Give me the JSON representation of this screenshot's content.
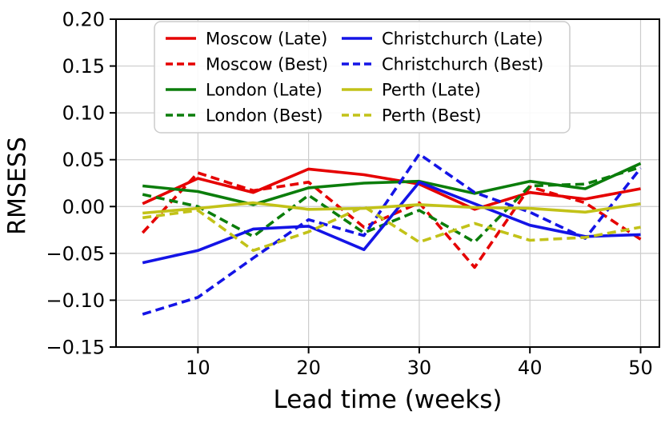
{
  "figure": {
    "background": "#ffffff",
    "grid_color": "#cccccc",
    "spine_color": "#000000",
    "tick_color": "#000000",
    "legend_border_color": "#cccccc",
    "legend_background": "#ffffff"
  },
  "chart_data": {
    "type": "line",
    "title": "",
    "xlabel": "Lead time (weeks)",
    "ylabel": "RMSESS",
    "x": [
      5,
      10,
      15,
      20,
      25,
      30,
      35,
      40,
      45,
      50
    ],
    "xticks": [
      10,
      20,
      30,
      40,
      50
    ],
    "yticks": [
      0.2,
      0.15,
      0.1,
      0.05,
      0.0,
      -0.05,
      -0.1,
      -0.15
    ],
    "xlim": [
      2.6,
      51.7
    ],
    "ylim": [
      -0.15,
      0.2
    ],
    "grid": true,
    "legend_position": "upper center",
    "legend_columns": 2,
    "series": [
      {
        "name": "Moscow (Late)",
        "color": "#e50000",
        "style": "solid",
        "values": [
          0.003,
          0.03,
          0.015,
          0.04,
          0.034,
          0.024,
          -0.003,
          0.015,
          0.008,
          0.019
        ]
      },
      {
        "name": "Moscow (Best)",
        "color": "#e50000",
        "style": "dashed",
        "values": [
          -0.028,
          0.036,
          0.017,
          0.026,
          -0.022,
          0.004,
          -0.065,
          0.021,
          0.004,
          -0.035
        ]
      },
      {
        "name": "London (Late)",
        "color": "#0b7d0b",
        "style": "solid",
        "values": [
          0.022,
          0.016,
          0.002,
          0.02,
          0.025,
          0.027,
          0.014,
          0.027,
          0.019,
          0.046
        ]
      },
      {
        "name": "London (Best)",
        "color": "#0b7d0b",
        "style": "dashed",
        "values": [
          0.013,
          0.0,
          -0.032,
          0.012,
          -0.028,
          -0.004,
          -0.038,
          0.022,
          0.024,
          0.042
        ]
      },
      {
        "name": "Christchurch (Late)",
        "color": "#1414e6",
        "style": "solid",
        "values": [
          -0.06,
          -0.047,
          -0.024,
          -0.021,
          -0.046,
          0.026,
          0.003,
          -0.02,
          -0.032,
          -0.03
        ]
      },
      {
        "name": "Christchurch (Best)",
        "color": "#1414e6",
        "style": "dashed",
        "values": [
          -0.115,
          -0.097,
          -0.055,
          -0.014,
          -0.031,
          0.056,
          0.015,
          -0.006,
          -0.034,
          0.041
        ]
      },
      {
        "name": "Perth (Late)",
        "color": "#c2c218",
        "style": "solid",
        "values": [
          -0.007,
          -0.002,
          0.004,
          -0.003,
          -0.002,
          0.002,
          -0.001,
          -0.002,
          -0.006,
          0.003
        ]
      },
      {
        "name": "Perth (Best)",
        "color": "#c2c218",
        "style": "dashed",
        "values": [
          -0.012,
          -0.004,
          -0.047,
          -0.027,
          0.0,
          -0.038,
          -0.018,
          -0.036,
          -0.033,
          -0.022
        ]
      }
    ]
  }
}
